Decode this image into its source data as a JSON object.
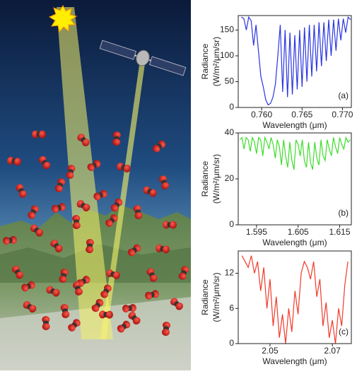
{
  "chart_data": [
    {
      "type": "line",
      "panel_label": "(a)",
      "y_label": [
        "Radiance",
        "(W/m²/μm/sr)"
      ],
      "x_label": "Wavelength (μm)",
      "color": "#2a35e0",
      "xlim": [
        0.7571,
        0.7711
      ],
      "ylim": [
        0,
        178
      ],
      "xticks": [
        {
          "value": 0.76,
          "label": "0.760"
        },
        0.765,
        {
          "value": 0.77,
          "label": "0.770"
        }
      ],
      "yticks": [
        0,
        50,
        100,
        150
      ],
      "x": [
        0.7575,
        0.7578,
        0.7581,
        0.7584,
        0.7587,
        0.759,
        0.7593,
        0.7596,
        0.7599,
        0.7602,
        0.7605,
        0.7608,
        0.7611,
        0.7614,
        0.7617,
        0.762,
        0.7623,
        0.7626,
        0.7629,
        0.7632,
        0.7635,
        0.7638,
        0.7641,
        0.7644,
        0.7647,
        0.765,
        0.7653,
        0.7656,
        0.7659,
        0.7662,
        0.7665,
        0.7668,
        0.7671,
        0.7674,
        0.7677,
        0.768,
        0.7683,
        0.7686,
        0.7689,
        0.7692,
        0.7695,
        0.7698,
        0.7701,
        0.7704,
        0.7707,
        0.771
      ],
      "values": [
        175,
        172,
        150,
        175,
        168,
        120,
        160,
        110,
        60,
        40,
        15,
        5,
        8,
        20,
        45,
        100,
        160,
        30,
        150,
        20,
        145,
        25,
        140,
        35,
        150,
        40,
        155,
        50,
        160,
        60,
        160,
        70,
        165,
        80,
        165,
        90,
        170,
        100,
        170,
        110,
        172,
        130,
        172,
        145,
        175,
        170
      ]
    },
    {
      "type": "line",
      "panel_label": "(b)",
      "y_label": [
        "Radiance",
        "(W/m²/μm/sr)"
      ],
      "x_label": "Wavelength (μm)",
      "color": "#3ddc2a",
      "xlim": [
        1.5906,
        1.6178
      ],
      "ylim": [
        0,
        40
      ],
      "xticks": [
        1.595,
        1.605,
        1.615
      ],
      "yticks": [
        0,
        20,
        40
      ],
      "x": [
        1.591,
        1.5915,
        1.592,
        1.5925,
        1.593,
        1.5935,
        1.594,
        1.5945,
        1.595,
        1.5955,
        1.596,
        1.5965,
        1.597,
        1.5975,
        1.598,
        1.5985,
        1.599,
        1.5995,
        1.6,
        1.6005,
        1.601,
        1.6015,
        1.602,
        1.6025,
        1.603,
        1.6035,
        1.604,
        1.6045,
        1.605,
        1.6055,
        1.606,
        1.6065,
        1.607,
        1.6075,
        1.608,
        1.6085,
        1.609,
        1.6095,
        1.61,
        1.6105,
        1.611,
        1.6115,
        1.612,
        1.6125,
        1.613,
        1.6135,
        1.614,
        1.6145,
        1.615,
        1.6155,
        1.616,
        1.6165,
        1.617,
        1.6175
      ],
      "values": [
        37,
        38,
        33,
        38,
        37,
        32,
        38,
        36,
        31,
        38,
        37,
        30,
        38,
        36,
        33,
        38,
        35,
        29,
        37,
        34,
        26,
        37,
        30,
        25,
        36,
        28,
        24,
        37,
        35,
        30,
        37,
        28,
        25,
        36,
        27,
        24,
        36,
        29,
        26,
        37,
        30,
        28,
        37,
        33,
        30,
        38,
        34,
        31,
        38,
        35,
        33,
        38,
        36,
        37
      ]
    },
    {
      "type": "line",
      "panel_label": "(c)",
      "y_label": [
        "Radiance",
        "(W/m²/μm/sr)"
      ],
      "x_label": "Wavelength (μm)",
      "color": "#f03a2a",
      "xlim": [
        2.0398,
        2.0761
      ],
      "ylim": [
        0,
        15.8
      ],
      "xticks": [
        2.05,
        2.07
      ],
      "yticks": [
        0,
        6,
        12
      ],
      "x": [
        2.041,
        2.042,
        2.043,
        2.044,
        2.045,
        2.046,
        2.047,
        2.048,
        2.049,
        2.05,
        2.051,
        2.052,
        2.053,
        2.054,
        2.055,
        2.056,
        2.057,
        2.058,
        2.059,
        2.06,
        2.061,
        2.062,
        2.063,
        2.064,
        2.065,
        2.066,
        2.067,
        2.068,
        2.069,
        2.07,
        2.071,
        2.072,
        2.073,
        2.074,
        2.075
      ],
      "values": [
        15,
        14,
        13,
        15,
        12,
        14,
        9,
        13,
        6,
        11,
        3,
        8,
        1,
        5,
        0,
        6,
        2,
        9,
        5,
        12,
        14,
        13,
        11,
        14,
        8,
        11,
        3,
        7,
        1,
        4,
        0,
        6,
        3,
        10,
        14
      ]
    }
  ]
}
